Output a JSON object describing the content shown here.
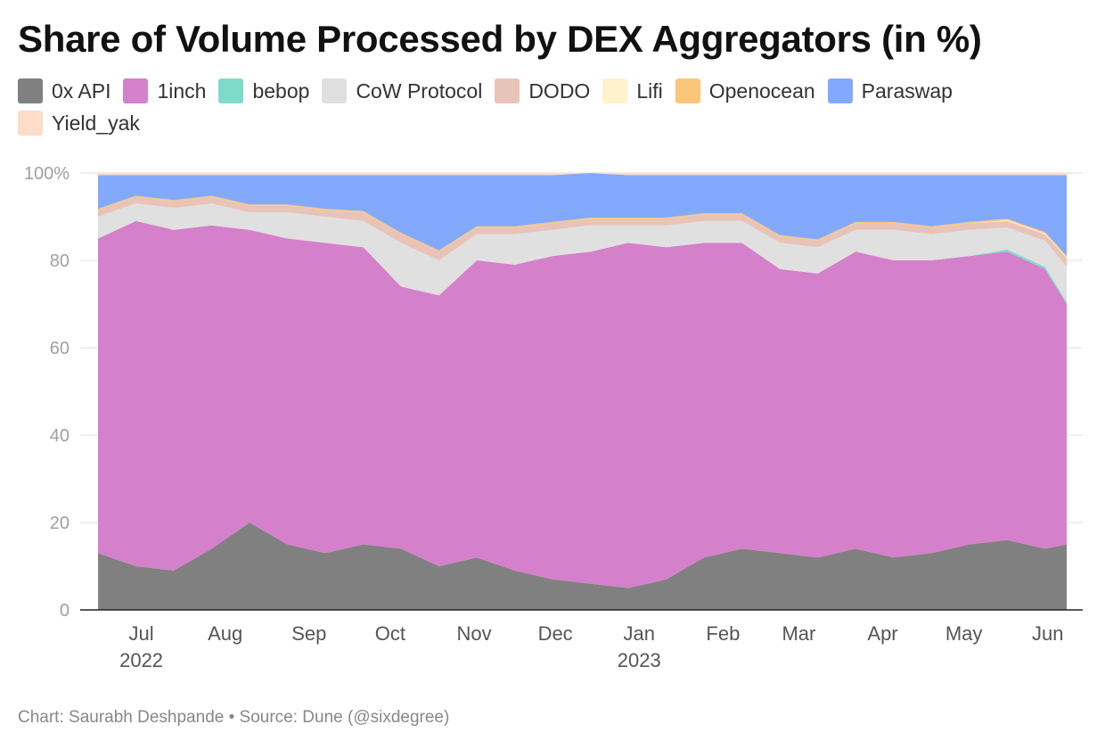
{
  "chart_data": {
    "type": "area",
    "stacked": true,
    "normalized": true,
    "title": "Share of Volume Processed by DEX Aggregators (in %)",
    "xlabel": "",
    "ylabel": "",
    "ylim": [
      0,
      100
    ],
    "grid": true,
    "legend_position": "top",
    "y_ticks": [
      "100%",
      "80",
      "60",
      "40",
      "20",
      "0"
    ],
    "x_ticks": [
      {
        "label": "Jul",
        "sub": "2022"
      },
      {
        "label": "Aug",
        "sub": ""
      },
      {
        "label": "Sep",
        "sub": ""
      },
      {
        "label": "Oct",
        "sub": ""
      },
      {
        "label": "Nov",
        "sub": ""
      },
      {
        "label": "Dec",
        "sub": ""
      },
      {
        "label": "Jan",
        "sub": "2023"
      },
      {
        "label": "Feb",
        "sub": ""
      },
      {
        "label": "Mar",
        "sub": ""
      },
      {
        "label": "Apr",
        "sub": ""
      },
      {
        "label": "May",
        "sub": ""
      },
      {
        "label": "Jun",
        "sub": ""
      }
    ],
    "x_dates": [
      "2022-06-15",
      "2022-06-29",
      "2022-07-13",
      "2022-07-27",
      "2022-08-10",
      "2022-08-24",
      "2022-09-07",
      "2022-09-21",
      "2022-10-05",
      "2022-10-19",
      "2022-11-02",
      "2022-11-16",
      "2022-11-30",
      "2022-12-14",
      "2022-12-28",
      "2023-01-11",
      "2023-01-25",
      "2023-02-08",
      "2023-02-22",
      "2023-03-08",
      "2023-03-22",
      "2023-04-05",
      "2023-04-19",
      "2023-05-03",
      "2023-05-17",
      "2023-05-31",
      "2023-06-08"
    ],
    "series": [
      {
        "name": "0x API",
        "color": "#808080",
        "values": [
          13,
          10,
          9,
          14,
          20,
          15,
          13,
          15,
          14,
          10,
          12,
          9,
          7,
          6,
          5,
          7,
          12,
          14,
          13,
          12,
          14,
          12,
          13,
          15,
          16,
          14,
          15
        ]
      },
      {
        "name": "1inch",
        "color": "#d580cb",
        "values": [
          72,
          79,
          78,
          74,
          67,
          70,
          71,
          68,
          60,
          62,
          68,
          70,
          74,
          76,
          79,
          76,
          72,
          70,
          65,
          65,
          68,
          68,
          67,
          66,
          66,
          64,
          55
        ]
      },
      {
        "name": "bebop",
        "color": "#7fdbc9",
        "values": [
          0,
          0,
          0,
          0,
          0,
          0,
          0,
          0,
          0,
          0,
          0,
          0,
          0,
          0,
          0,
          0,
          0,
          0,
          0,
          0,
          0,
          0,
          0,
          0,
          0.5,
          0.5,
          0.5
        ]
      },
      {
        "name": "CoW Protocol",
        "color": "#e0e0e0",
        "values": [
          5,
          4,
          5,
          5,
          4,
          6,
          6,
          6,
          10,
          8,
          6,
          7,
          6,
          6,
          4,
          5,
          5,
          5,
          6,
          6,
          5,
          7,
          6,
          6,
          5,
          6,
          8
        ]
      },
      {
        "name": "DODO",
        "color": "#e8c4b8",
        "values": [
          1.5,
          1.5,
          1.5,
          1.5,
          1.5,
          1.5,
          1.5,
          2,
          2,
          2,
          1.5,
          1.5,
          1.5,
          1.5,
          1.5,
          1.5,
          1.5,
          1.5,
          1.5,
          1.5,
          1.5,
          1.5,
          1.5,
          1.5,
          1.5,
          1.5,
          2
        ]
      },
      {
        "name": "Lifi",
        "color": "#fff2cc",
        "values": [
          0,
          0,
          0,
          0,
          0,
          0,
          0,
          0,
          0,
          0,
          0,
          0,
          0,
          0,
          0,
          0,
          0,
          0,
          0,
          0,
          0,
          0,
          0,
          0,
          0.2,
          0.2,
          0.2
        ]
      },
      {
        "name": "Openocean",
        "color": "#fbc57a",
        "values": [
          0.3,
          0.3,
          0.3,
          0.3,
          0.3,
          0.3,
          0.3,
          0.3,
          0.3,
          0.3,
          0.3,
          0.3,
          0.3,
          0.3,
          0.3,
          0.3,
          0.3,
          0.3,
          0.3,
          0.3,
          0.3,
          0.3,
          0.3,
          0.3,
          0.3,
          0.3,
          0.3
        ]
      },
      {
        "name": "Paraswap",
        "color": "#82a9fc",
        "values": [
          7.7,
          4.7,
          5.7,
          4.7,
          6.7,
          6.7,
          7.7,
          8.2,
          13.2,
          17.2,
          11.7,
          11.7,
          10.7,
          10.2,
          9.7,
          9.7,
          8.7,
          8.7,
          13.7,
          14.7,
          10.7,
          10.7,
          11.7,
          10.7,
          10.0,
          13.0,
          18.5
        ]
      },
      {
        "name": "Yield_yak",
        "color": "#fddcc8",
        "values": [
          0.5,
          0.5,
          0.5,
          0.5,
          0.5,
          0.5,
          0.5,
          0.5,
          0.5,
          0.5,
          0.5,
          0.5,
          0.5,
          0.5,
          0.5,
          0.5,
          0.5,
          0.5,
          0.5,
          0.5,
          0.5,
          0.5,
          0.5,
          0.5,
          0.5,
          0.5,
          0.5
        ]
      }
    ],
    "footer": "Chart: Saurabh Deshpande • Source: Dune (@sixdegree)"
  }
}
